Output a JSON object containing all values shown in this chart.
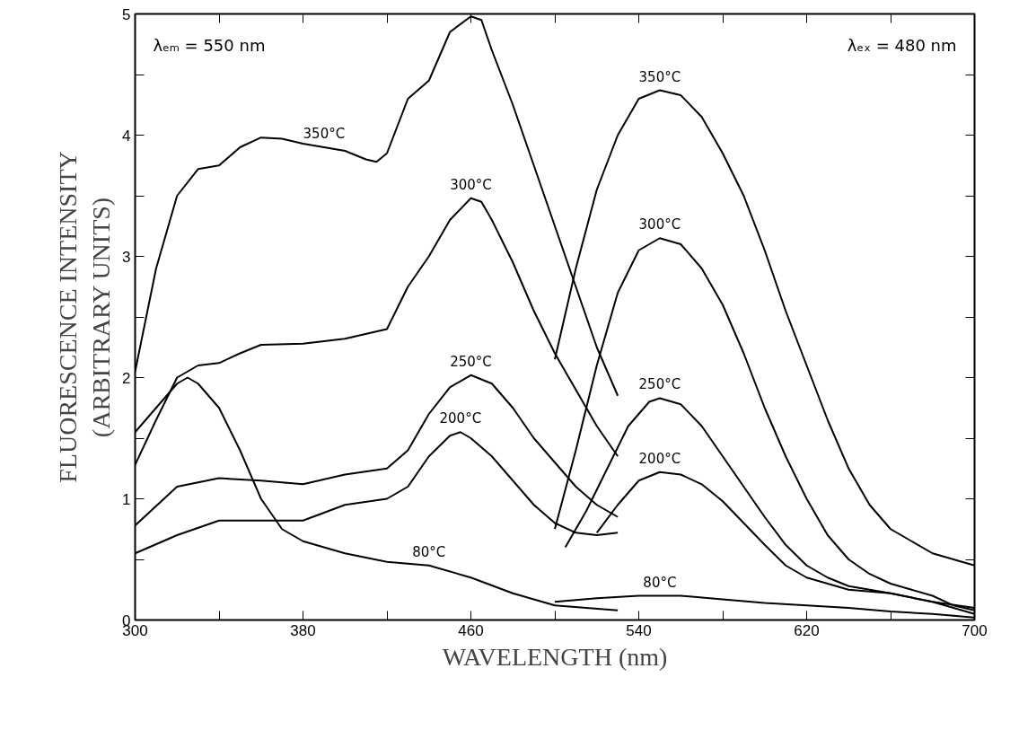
{
  "chart_data": {
    "type": "line",
    "xlabel": "WAVELENGTH (nm)",
    "ylabel": "FLUORESCENCE INTENSITY\n(ARBITRARY UNITS)",
    "xlim": [
      300,
      700
    ],
    "ylim": [
      0,
      5
    ],
    "xticks": [
      300,
      {
        "value": 340,
        "label": null
      },
      380,
      {
        "value": 420,
        "label": null
      },
      460,
      {
        "value": 500,
        "label": null
      },
      540,
      {
        "value": 580,
        "label": null
      },
      620,
      {
        "value": 660,
        "label": null
      },
      700
    ],
    "yticks": [
      0,
      {
        "value": 0.5,
        "label": null
      },
      1,
      {
        "value": 1.5,
        "label": null
      },
      2,
      {
        "value": 2.5,
        "label": null
      },
      3,
      {
        "value": 3.5,
        "label": null
      },
      4,
      {
        "value": 4.5,
        "label": null
      },
      5
    ],
    "grid": false,
    "marker": "none",
    "line_style": "solid",
    "series": [
      {
        "color": "#000000",
        "x": [
          300,
          310,
          320,
          330,
          340,
          350,
          360,
          370,
          380,
          390,
          400,
          410,
          415,
          420,
          430,
          440,
          450,
          460,
          465,
          470,
          480,
          490,
          500,
          510,
          520,
          530
        ],
        "values": [
          2.05,
          2.9,
          3.5,
          3.72,
          3.75,
          3.9,
          3.98,
          3.97,
          3.93,
          3.9,
          3.87,
          3.8,
          3.78,
          3.85,
          4.3,
          4.45,
          4.85,
          4.98,
          4.95,
          4.7,
          4.25,
          3.75,
          3.25,
          2.75,
          2.25,
          1.85
        ]
      },
      {
        "color": "#000000",
        "x": [
          300,
          310,
          320,
          330,
          340,
          350,
          360,
          380,
          400,
          420,
          430,
          440,
          450,
          460,
          465,
          470,
          480,
          490,
          500,
          510,
          520,
          530
        ],
        "values": [
          1.28,
          1.65,
          2.0,
          2.1,
          2.12,
          2.2,
          2.27,
          2.28,
          2.32,
          2.4,
          2.75,
          3.0,
          3.3,
          3.48,
          3.45,
          3.3,
          2.95,
          2.55,
          2.2,
          1.9,
          1.6,
          1.35
        ]
      },
      {
        "color": "#000000",
        "x": [
          300,
          320,
          340,
          360,
          380,
          400,
          420,
          430,
          440,
          450,
          460,
          470,
          480,
          490,
          500,
          510,
          520,
          530
        ],
        "values": [
          0.78,
          1.1,
          1.17,
          1.15,
          1.12,
          1.2,
          1.25,
          1.4,
          1.7,
          1.92,
          2.02,
          1.95,
          1.75,
          1.5,
          1.3,
          1.1,
          0.95,
          0.85
        ]
      },
      {
        "color": "#000000",
        "x": [
          300,
          320,
          340,
          360,
          380,
          400,
          420,
          430,
          440,
          450,
          455,
          460,
          470,
          480,
          490,
          500,
          510,
          520,
          530
        ],
        "values": [
          0.55,
          0.7,
          0.82,
          0.82,
          0.82,
          0.95,
          1.0,
          1.1,
          1.35,
          1.52,
          1.55,
          1.5,
          1.35,
          1.15,
          0.95,
          0.8,
          0.72,
          0.7,
          0.72
        ]
      },
      {
        "color": "#000000",
        "x": [
          300,
          310,
          320,
          325,
          330,
          340,
          350,
          360,
          370,
          380,
          400,
          420,
          440,
          460,
          480,
          500,
          530
        ],
        "values": [
          1.55,
          1.75,
          1.95,
          2.0,
          1.95,
          1.75,
          1.4,
          1.0,
          0.75,
          0.65,
          0.55,
          0.48,
          0.45,
          0.35,
          0.22,
          0.12,
          0.08
        ]
      },
      {
        "color": "#000000",
        "x": [
          500,
          510,
          520,
          530,
          540,
          550,
          560,
          570,
          580,
          590,
          600,
          610,
          620,
          630,
          640,
          650,
          660,
          670,
          680,
          690,
          700
        ],
        "values": [
          2.15,
          2.9,
          3.55,
          4.0,
          4.3,
          4.37,
          4.33,
          4.15,
          3.85,
          3.5,
          3.05,
          2.55,
          2.1,
          1.65,
          1.25,
          0.95,
          0.75,
          0.65,
          0.55,
          0.5,
          0.45
        ]
      },
      {
        "color": "#000000",
        "x": [
          500,
          510,
          520,
          530,
          540,
          550,
          560,
          570,
          580,
          590,
          600,
          610,
          620,
          630,
          640,
          650,
          660,
          670,
          680,
          690,
          700
        ],
        "values": [
          0.75,
          1.4,
          2.1,
          2.7,
          3.05,
          3.15,
          3.1,
          2.9,
          2.6,
          2.2,
          1.75,
          1.35,
          1.0,
          0.7,
          0.5,
          0.38,
          0.3,
          0.25,
          0.2,
          0.12,
          0.08
        ]
      },
      {
        "color": "#000000",
        "x": [
          505,
          515,
          525,
          535,
          545,
          550,
          560,
          570,
          580,
          590,
          600,
          610,
          620,
          630,
          640,
          660,
          680,
          700
        ],
        "values": [
          0.6,
          0.9,
          1.25,
          1.6,
          1.8,
          1.83,
          1.78,
          1.6,
          1.35,
          1.1,
          0.85,
          0.62,
          0.45,
          0.35,
          0.28,
          0.22,
          0.15,
          0.05
        ]
      },
      {
        "color": "#000000",
        "x": [
          520,
          530,
          540,
          550,
          560,
          570,
          580,
          590,
          600,
          610,
          620,
          640,
          660,
          680,
          700
        ],
        "values": [
          0.72,
          0.95,
          1.15,
          1.22,
          1.2,
          1.12,
          0.98,
          0.8,
          0.62,
          0.45,
          0.35,
          0.25,
          0.22,
          0.15,
          0.1
        ]
      },
      {
        "color": "#000000",
        "x": [
          500,
          520,
          540,
          560,
          580,
          600,
          620,
          640,
          660,
          680,
          700
        ],
        "values": [
          0.15,
          0.18,
          0.2,
          0.2,
          0.17,
          0.14,
          0.12,
          0.1,
          0.07,
          0.05,
          0.02
        ]
      }
    ],
    "annotations": [
      "λₑₘ = 550 nm",
      "λₑₓ = 480 nm",
      {
        "text": "350°C",
        "x": 390,
        "y": 3.9
      },
      {
        "text": "300°C",
        "x": 460,
        "y": 3.48
      },
      {
        "text": "250°C",
        "x": 460,
        "y": 2.02
      },
      {
        "text": "200°C",
        "x": 455,
        "y": 1.55
      },
      {
        "text": "80°C",
        "x": 440,
        "y": 0.45
      },
      {
        "text": "350°C",
        "x": 550,
        "y": 4.37
      },
      {
        "text": "300°C",
        "x": 550,
        "y": 3.15
      },
      {
        "text": "250°C",
        "x": 550,
        "y": 1.83
      },
      {
        "text": "200°C",
        "x": 550,
        "y": 1.22
      },
      {
        "text": "80°C",
        "x": 550,
        "y": 0.2
      }
    ]
  }
}
